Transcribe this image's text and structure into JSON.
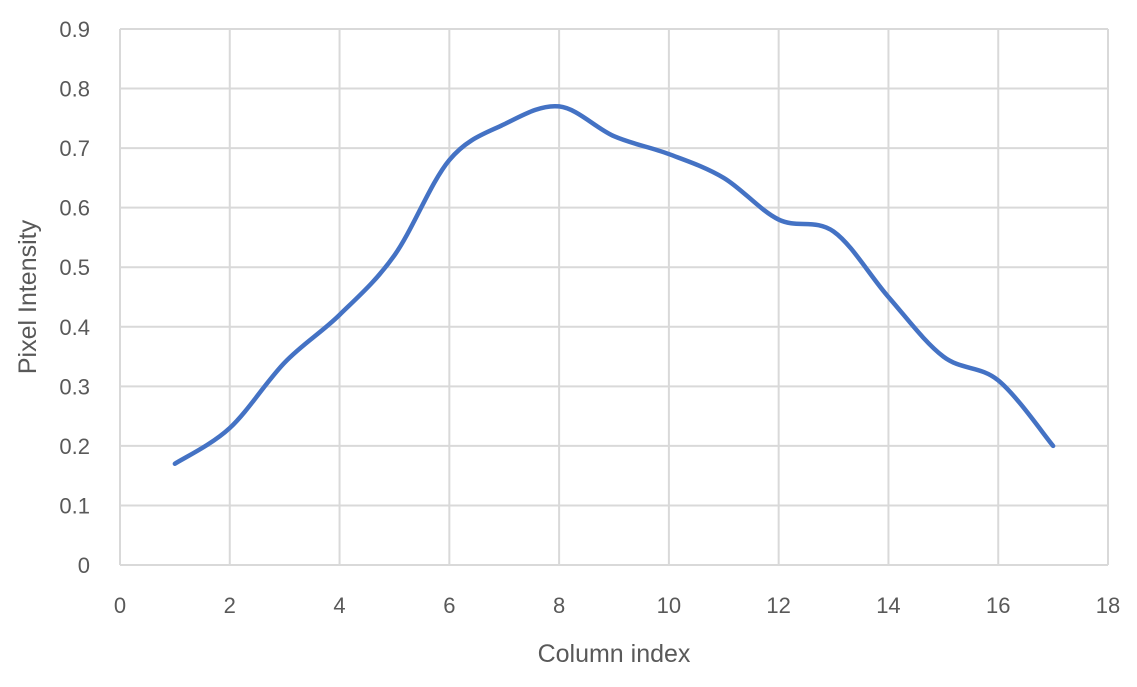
{
  "chart_data": {
    "type": "line",
    "title": "",
    "xlabel": "Column index",
    "ylabel": "Pixel Intensity",
    "xlim": [
      0,
      18
    ],
    "ylim": [
      0,
      0.9
    ],
    "x_ticks": [
      0,
      2,
      4,
      6,
      8,
      10,
      12,
      14,
      16,
      18
    ],
    "y_ticks": [
      "0",
      "0.1",
      "0.2",
      "0.3",
      "0.4",
      "0.5",
      "0.6",
      "0.7",
      "0.8",
      "0.9"
    ],
    "grid": true,
    "smooth": true,
    "colors": {
      "series": "#4472c4",
      "grid": "#d9d9d9",
      "text": "#595959"
    },
    "series": [
      {
        "x": [
          1,
          2,
          3,
          4,
          5,
          6,
          7,
          8,
          9,
          10,
          11,
          12,
          13,
          14,
          15,
          16,
          17
        ],
        "values": [
          0.17,
          0.23,
          0.34,
          0.42,
          0.52,
          0.68,
          0.74,
          0.77,
          0.72,
          0.69,
          0.65,
          0.58,
          0.56,
          0.45,
          0.35,
          0.31,
          0.2
        ]
      }
    ]
  }
}
